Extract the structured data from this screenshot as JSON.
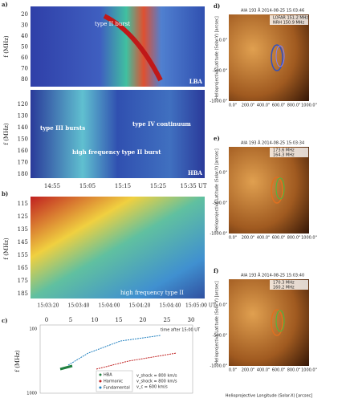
{
  "panel_a": {
    "label": "a)",
    "y_axis_label": "f (MHz)",
    "lba": {
      "yticks": [
        "20",
        "30",
        "40",
        "50",
        "60",
        "70",
        "80"
      ],
      "annotation": "type II burst",
      "name": "LBA"
    },
    "hba": {
      "y_axis_label": "f (MHz)",
      "yticks": [
        "120",
        "130",
        "140",
        "150",
        "160",
        "170",
        "180"
      ],
      "annotations": [
        "type III bursts",
        "type IV continuum",
        "high frequency type II burst"
      ],
      "name": "HBA"
    },
    "xticks": [
      "14:55",
      "15:05",
      "15:15",
      "15:25",
      "15:35 UT"
    ]
  },
  "panel_b": {
    "label": "b)",
    "y_axis_label": "f (MHz)",
    "yticks": [
      "115",
      "125",
      "135",
      "145",
      "155",
      "165",
      "175",
      "185"
    ],
    "xticks": [
      "15:03:20",
      "15:03:40",
      "15:04:00",
      "15:04:20",
      "15:04:40",
      "15:05:00 UT"
    ],
    "annotation": "high frequency type II"
  },
  "panel_c": {
    "label": "c)",
    "y_axis_label": "f (MHz)",
    "xticks": [
      "0",
      "5",
      "10",
      "15",
      "20",
      "25",
      "30"
    ],
    "x_axis_label": "time after 15:00 UT",
    "yticks": [
      "100",
      "1000"
    ],
    "legend": [
      "HBA",
      "Harmonic",
      "Fundamental"
    ],
    "speeds": [
      "v_shock = 800 km/s",
      "v_shock = 800 km/s",
      "v_c = 600 km/s"
    ]
  },
  "maps": [
    {
      "label": "d)",
      "title": "AIA 193 Å 2014-08-25 15:03:46",
      "legend": [
        "LOFAR 151.2 MHz",
        "NRH 150.9 MHz"
      ]
    },
    {
      "label": "e)",
      "title": "AIA 193 Å 2014-08-25 15:03:34",
      "legend": [
        "173.6 MHz",
        "164.3 MHz"
      ]
    },
    {
      "label": "f)",
      "title": "AIA 193 Å 2014-08-25 15:03:40",
      "legend": [
        "170.3 MHz",
        "160.2 MHz"
      ]
    }
  ],
  "map_axes": {
    "y_axis_label": "Helioprojective Latitude (Solar-Y) [arcsec]",
    "yticks": [
      "0.0\"",
      "-500.0\"",
      "-1000.0\""
    ],
    "xticks": [
      "0.0\"",
      "200.0\"",
      "400.0\"",
      "600.0\"",
      "800.0\"",
      "1000.0\""
    ],
    "x_axis_label": "Helioprojective Longitude (Solar-X) [arcsec]"
  }
}
